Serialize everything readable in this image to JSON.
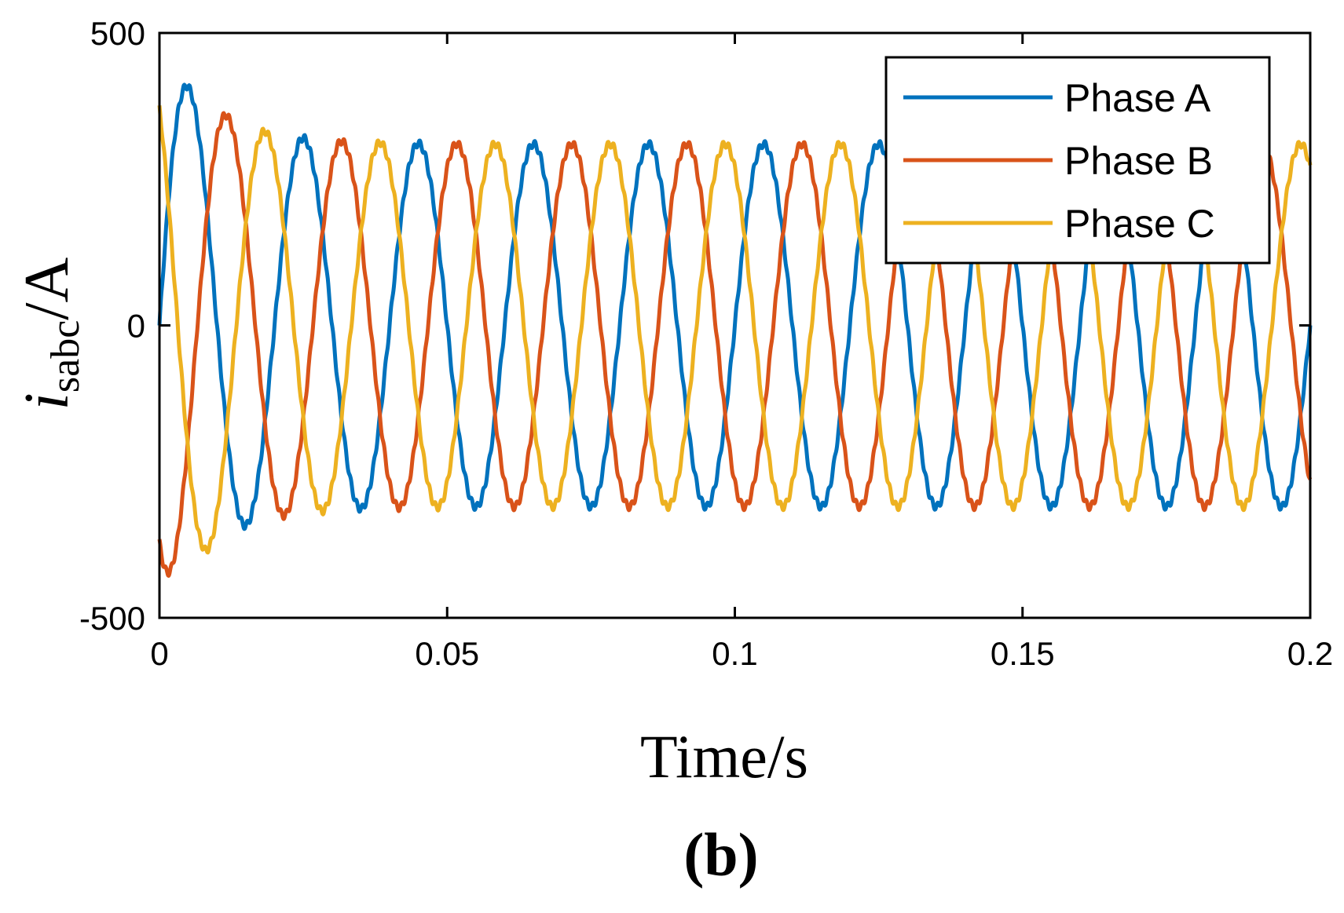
{
  "panel_label": "(b)",
  "chart_data": {
    "type": "line",
    "xlabel": "Time/s",
    "ylabel": {
      "main": "i",
      "subscript": "sabc",
      "unit": "/A"
    },
    "xlim": [
      0,
      0.2
    ],
    "ylim": [
      -500,
      500
    ],
    "xticks": [
      0,
      0.05,
      0.1,
      0.15,
      0.2
    ],
    "xtick_labels": [
      "0",
      "0.05",
      "0.1",
      "0.15",
      "0.2"
    ],
    "yticks": [
      -500,
      0,
      500
    ],
    "ytick_labels": [
      "-500",
      "0",
      "500"
    ],
    "grid": false,
    "legend_position": "top-right",
    "frequency_hz": 50,
    "steady_amplitude": 310,
    "series": [
      {
        "name": "Phase A",
        "color": "#0072BD",
        "phase_deg": 0,
        "peaks": [
          [
            0.006,
            460
          ],
          [
            0.0135,
            -385
          ],
          [
            0.025,
            310
          ],
          [
            0.035,
            -330
          ],
          [
            0.045,
            320
          ],
          [
            0.065,
            325
          ],
          [
            0.085,
            315
          ],
          [
            0.105,
            315
          ],
          [
            0.125,
            315
          ],
          [
            0.195,
            -325
          ]
        ]
      },
      {
        "name": "Phase B",
        "color": "#D95319",
        "phase_deg": -120,
        "peaks": [
          [
            0.003,
            -430
          ],
          [
            0.011,
            405
          ],
          [
            0.021,
            -335
          ],
          [
            0.032,
            335
          ],
          [
            0.052,
            320
          ],
          [
            0.072,
            315
          ],
          [
            0.092,
            315
          ],
          [
            0.112,
            320
          ],
          [
            0.161,
            -330
          ]
        ]
      },
      {
        "name": "Phase C",
        "color": "#EDB120",
        "phase_deg": 120,
        "peaks": [
          [
            0.001,
            320
          ],
          [
            0.008,
            -430
          ],
          [
            0.018,
            380
          ],
          [
            0.028,
            -320
          ],
          [
            0.038,
            325
          ],
          [
            0.058,
            320
          ],
          [
            0.078,
            320
          ],
          [
            0.098,
            320
          ],
          [
            0.198,
            320
          ]
        ]
      }
    ]
  }
}
